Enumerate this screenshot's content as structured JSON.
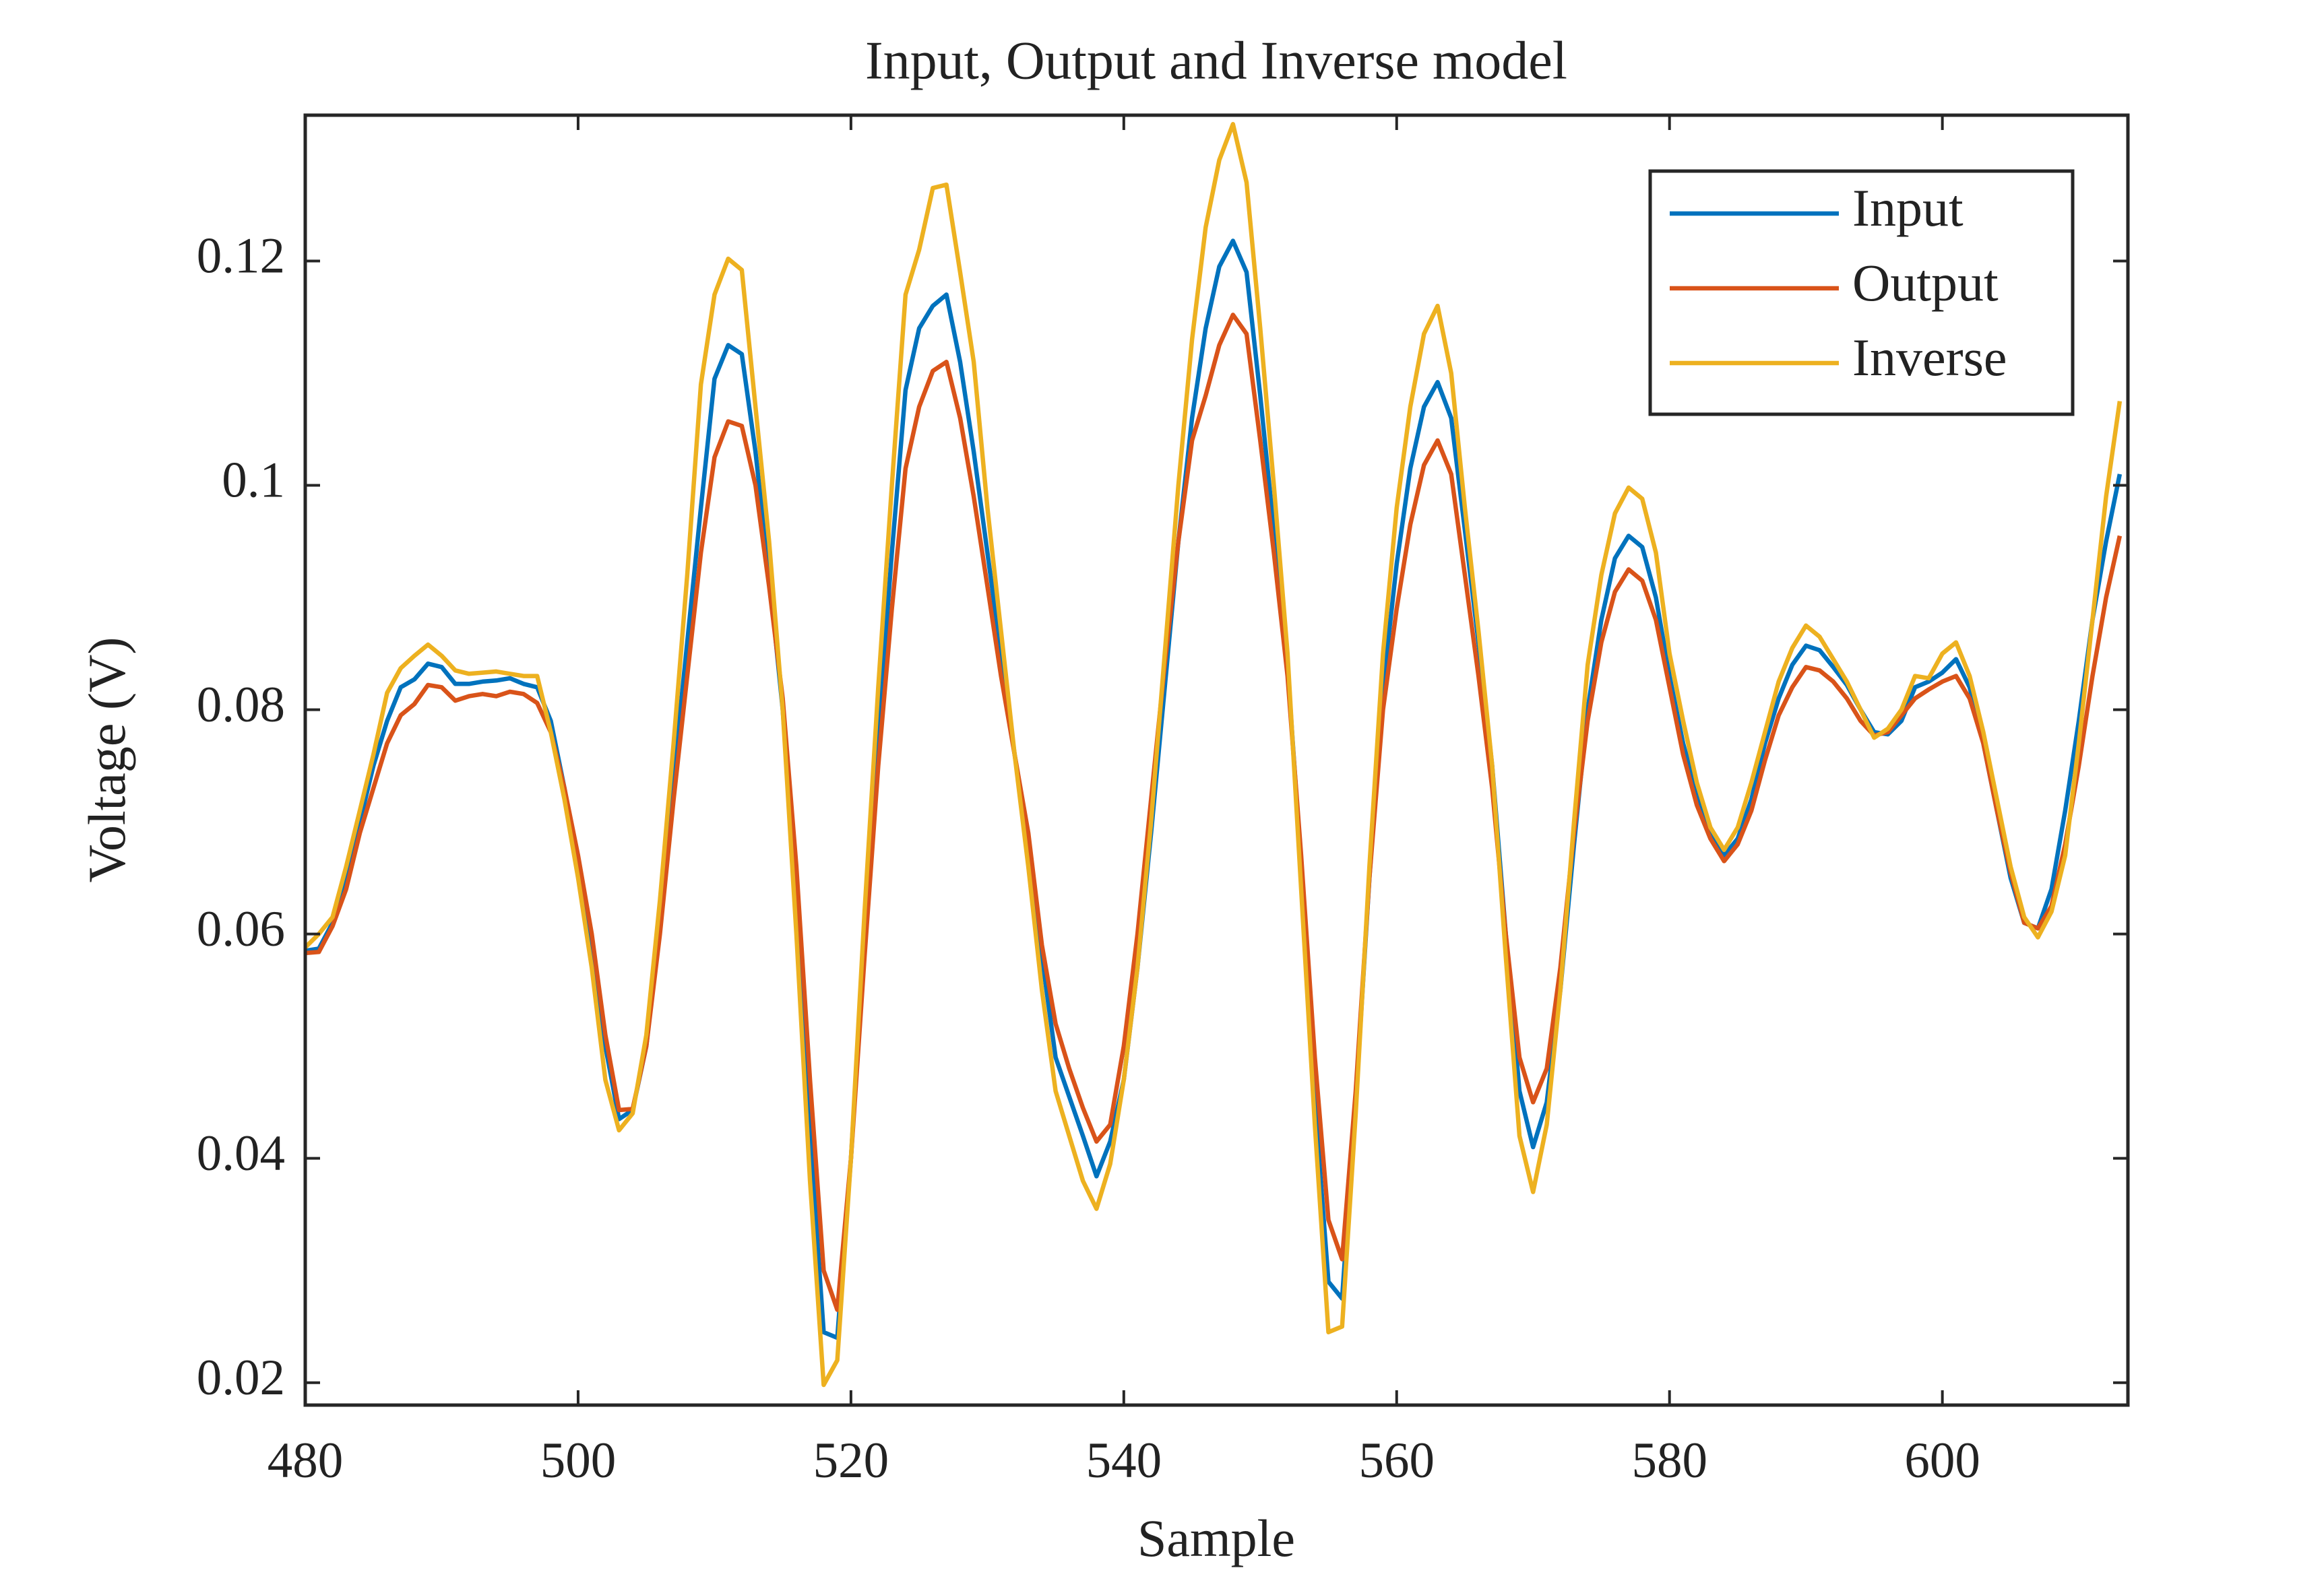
{
  "chart_data": {
    "type": "line",
    "title": "Input, Output and Inverse model",
    "xlabel": "Sample",
    "ylabel": "Voltage (V)",
    "xlim": [
      480,
      613.6
    ],
    "ylim": [
      0.018,
      0.133
    ],
    "xticks": [
      480,
      500,
      520,
      540,
      560,
      580,
      600
    ],
    "yticks": [
      0.02,
      0.04,
      0.06,
      0.08,
      0.1,
      0.12
    ],
    "legend": "upper right",
    "x": [
      480,
      481,
      482,
      483,
      484,
      485,
      486,
      487,
      488,
      489,
      490,
      491,
      492,
      493,
      494,
      495,
      496,
      497,
      498,
      499,
      500,
      501,
      502,
      503,
      504,
      505,
      506,
      507,
      508,
      509,
      510,
      511,
      512,
      513,
      514,
      515,
      516,
      517,
      518,
      519,
      520,
      521,
      522,
      523,
      524,
      525,
      526,
      527,
      528,
      529,
      530,
      531,
      532,
      533,
      534,
      535,
      536,
      537,
      538,
      539,
      540,
      541,
      542,
      543,
      544,
      545,
      546,
      547,
      548,
      549,
      550,
      551,
      552,
      553,
      554,
      555,
      556,
      557,
      558,
      559,
      560,
      561,
      562,
      563,
      564,
      565,
      566,
      567,
      568,
      569,
      570,
      571,
      572,
      573,
      574,
      575,
      576,
      577,
      578,
      579,
      580,
      581,
      582,
      583,
      584,
      585,
      586,
      587,
      588,
      589,
      590,
      591,
      592,
      593,
      594,
      595,
      596,
      597,
      598,
      599,
      600,
      601,
      602,
      603,
      604,
      605,
      606,
      607,
      608,
      609,
      610,
      611,
      612,
      613
    ],
    "series": [
      {
        "name": "Input",
        "color": "#0072bd",
        "values": [
          0.0585,
          0.0587,
          0.061,
          0.065,
          0.07,
          0.075,
          0.079,
          0.082,
          0.0827,
          0.0841,
          0.0838,
          0.0823,
          0.0823,
          0.0825,
          0.0826,
          0.0828,
          0.0823,
          0.082,
          0.079,
          0.073,
          0.066,
          0.059,
          0.05,
          0.0435,
          0.0443,
          0.05,
          0.061,
          0.074,
          0.086,
          0.098,
          0.1095,
          0.1125,
          0.1117,
          0.103,
          0.092,
          0.08,
          0.063,
          0.042,
          0.0245,
          0.024,
          0.04,
          0.06,
          0.078,
          0.094,
          0.1085,
          0.114,
          0.116,
          0.117,
          0.111,
          0.103,
          0.094,
          0.085,
          0.076,
          0.068,
          0.058,
          0.049,
          0.0455,
          0.042,
          0.0384,
          0.0415,
          0.047,
          0.057,
          0.069,
          0.082,
          0.095,
          0.106,
          0.114,
          0.1195,
          0.1218,
          0.119,
          0.108,
          0.096,
          0.084,
          0.066,
          0.045,
          0.029,
          0.0275,
          0.045,
          0.065,
          0.082,
          0.093,
          0.1015,
          0.107,
          0.1092,
          0.106,
          0.096,
          0.086,
          0.075,
          0.06,
          0.046,
          0.041,
          0.045,
          0.055,
          0.068,
          0.08,
          0.088,
          0.0935,
          0.0955,
          0.0945,
          0.09,
          0.083,
          0.077,
          0.0725,
          0.069,
          0.067,
          0.0685,
          0.072,
          0.077,
          0.081,
          0.084,
          0.0857,
          0.0853,
          0.0838,
          0.0822,
          0.08,
          0.078,
          0.0778,
          0.079,
          0.082,
          0.0825,
          0.0833,
          0.0845,
          0.082,
          0.077,
          0.071,
          0.065,
          0.061,
          0.0605,
          0.064,
          0.071,
          0.079,
          0.088,
          0.095,
          0.101
        ]
      },
      {
        "name": "Output",
        "color": "#d95319",
        "values": [
          0.0583,
          0.0584,
          0.0607,
          0.064,
          0.069,
          0.073,
          0.077,
          0.0795,
          0.0805,
          0.0822,
          0.082,
          0.0808,
          0.0812,
          0.0814,
          0.0812,
          0.0816,
          0.0814,
          0.0806,
          0.078,
          0.073,
          0.067,
          0.06,
          0.051,
          0.0443,
          0.0444,
          0.05,
          0.06,
          0.072,
          0.083,
          0.094,
          0.1025,
          0.1057,
          0.1053,
          0.1,
          0.091,
          0.081,
          0.066,
          0.047,
          0.03,
          0.0265,
          0.04,
          0.058,
          0.075,
          0.089,
          0.1015,
          0.107,
          0.1102,
          0.111,
          0.106,
          0.099,
          0.091,
          0.083,
          0.076,
          0.069,
          0.059,
          0.052,
          0.048,
          0.0445,
          0.0415,
          0.043,
          0.05,
          0.06,
          0.072,
          0.084,
          0.095,
          0.104,
          0.108,
          0.1125,
          0.1152,
          0.1135,
          0.104,
          0.094,
          0.083,
          0.067,
          0.049,
          0.0345,
          0.031,
          0.046,
          0.065,
          0.08,
          0.089,
          0.0965,
          0.1018,
          0.104,
          0.101,
          0.092,
          0.083,
          0.073,
          0.06,
          0.049,
          0.045,
          0.048,
          0.057,
          0.069,
          0.079,
          0.086,
          0.0905,
          0.0925,
          0.0915,
          0.088,
          0.082,
          0.076,
          0.0715,
          0.0685,
          0.0665,
          0.068,
          0.071,
          0.0755,
          0.0795,
          0.082,
          0.0838,
          0.0835,
          0.0825,
          0.081,
          0.079,
          0.0777,
          0.078,
          0.0795,
          0.081,
          0.0818,
          0.0825,
          0.083,
          0.081,
          0.077,
          0.071,
          0.0655,
          0.061,
          0.0605,
          0.0625,
          0.068,
          0.075,
          0.083,
          0.09,
          0.0955
        ]
      },
      {
        "name": "Inverse",
        "color": "#edb120",
        "values": [
          0.0588,
          0.06,
          0.0615,
          0.066,
          0.071,
          0.076,
          0.0815,
          0.0837,
          0.0848,
          0.0858,
          0.0848,
          0.0835,
          0.0832,
          0.0833,
          0.0834,
          0.0832,
          0.083,
          0.083,
          0.078,
          0.072,
          0.065,
          0.057,
          0.047,
          0.0425,
          0.044,
          0.051,
          0.063,
          0.077,
          0.092,
          0.109,
          0.117,
          0.1202,
          0.1192,
          0.107,
          0.095,
          0.08,
          0.06,
          0.038,
          0.0198,
          0.022,
          0.04,
          0.062,
          0.082,
          0.1,
          0.117,
          0.121,
          0.1265,
          0.1268,
          0.119,
          0.111,
          0.098,
          0.087,
          0.076,
          0.066,
          0.055,
          0.046,
          0.042,
          0.038,
          0.0355,
          0.0395,
          0.047,
          0.057,
          0.07,
          0.085,
          0.1,
          0.113,
          0.123,
          0.129,
          0.1322,
          0.127,
          0.114,
          0.1,
          0.085,
          0.064,
          0.043,
          0.0245,
          0.025,
          0.044,
          0.066,
          0.085,
          0.098,
          0.107,
          0.1135,
          0.116,
          0.11,
          0.098,
          0.087,
          0.075,
          0.058,
          0.042,
          0.037,
          0.043,
          0.055,
          0.07,
          0.084,
          0.092,
          0.0975,
          0.0998,
          0.0988,
          0.094,
          0.085,
          0.079,
          0.0735,
          0.0695,
          0.0675,
          0.0695,
          0.0735,
          0.078,
          0.0825,
          0.0855,
          0.0875,
          0.0865,
          0.0845,
          0.0825,
          0.08,
          0.0775,
          0.0783,
          0.08,
          0.083,
          0.0828,
          0.085,
          0.086,
          0.083,
          0.078,
          0.072,
          0.066,
          0.0615,
          0.0597,
          0.062,
          0.067,
          0.077,
          0.088,
          0.099,
          0.1075
        ]
      }
    ]
  }
}
